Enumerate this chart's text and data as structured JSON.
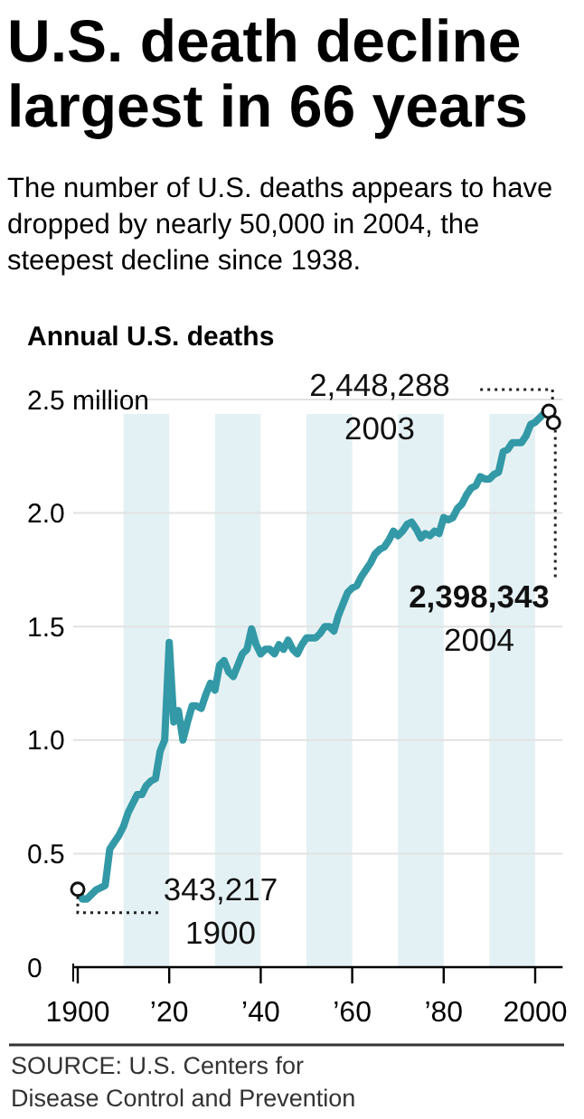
{
  "chart_data": {
    "type": "line",
    "title": "U.S. death decline largest in 66 years",
    "subtitle": "The number of U.S. deaths appears to have dropped by nearly 50,000 in 2004, the steepest decline since 1938.",
    "ylabel": "Annual U.S. deaths",
    "x": [
      1900,
      1901,
      1902,
      1903,
      1904,
      1905,
      1906,
      1907,
      1908,
      1909,
      1910,
      1911,
      1912,
      1913,
      1914,
      1915,
      1916,
      1917,
      1918,
      1919,
      1920,
      1921,
      1922,
      1923,
      1924,
      1925,
      1926,
      1927,
      1928,
      1929,
      1930,
      1931,
      1932,
      1933,
      1934,
      1935,
      1936,
      1937,
      1938,
      1939,
      1940,
      1941,
      1942,
      1943,
      1944,
      1945,
      1946,
      1947,
      1948,
      1949,
      1950,
      1951,
      1952,
      1953,
      1954,
      1955,
      1956,
      1957,
      1958,
      1959,
      1960,
      1961,
      1962,
      1963,
      1964,
      1965,
      1966,
      1967,
      1968,
      1969,
      1970,
      1971,
      1972,
      1973,
      1974,
      1975,
      1976,
      1977,
      1978,
      1979,
      1980,
      1981,
      1982,
      1983,
      1984,
      1985,
      1986,
      1987,
      1988,
      1989,
      1990,
      1991,
      1992,
      1993,
      1994,
      1995,
      1996,
      1997,
      1998,
      1999,
      2000,
      2001,
      2002,
      2003,
      2004
    ],
    "series": [
      {
        "color": "#3399a6",
        "values": [
          0.34,
          0.3,
          0.3,
          0.32,
          0.34,
          0.35,
          0.36,
          0.52,
          0.55,
          0.58,
          0.62,
          0.68,
          0.72,
          0.76,
          0.76,
          0.8,
          0.82,
          0.83,
          0.95,
          1.0,
          1.43,
          1.08,
          1.13,
          1.0,
          1.08,
          1.15,
          1.15,
          1.14,
          1.2,
          1.25,
          1.22,
          1.33,
          1.35,
          1.3,
          1.28,
          1.33,
          1.38,
          1.4,
          1.49,
          1.42,
          1.38,
          1.4,
          1.4,
          1.38,
          1.42,
          1.4,
          1.44,
          1.4,
          1.38,
          1.42,
          1.45,
          1.45,
          1.45,
          1.47,
          1.5,
          1.5,
          1.48,
          1.55,
          1.6,
          1.65,
          1.67,
          1.68,
          1.72,
          1.75,
          1.78,
          1.82,
          1.84,
          1.85,
          1.88,
          1.92,
          1.9,
          1.92,
          1.95,
          1.96,
          1.93,
          1.89,
          1.91,
          1.9,
          1.92,
          1.91,
          1.98,
          1.97,
          1.98,
          2.02,
          2.04,
          2.08,
          2.11,
          2.12,
          2.16,
          2.15,
          2.15,
          2.17,
          2.18,
          2.27,
          2.28,
          2.31,
          2.31,
          2.31,
          2.34,
          2.39,
          2.4,
          2.42,
          2.44,
          2.45,
          2.4
        ]
      }
    ],
    "xlim": [
      1899,
      2006
    ],
    "xticks": [
      1900,
      {
        "value": 1920,
        "label": "’20"
      },
      {
        "value": 1940,
        "label": "’40"
      },
      {
        "value": 1960,
        "label": "’60"
      },
      {
        "value": 1980,
        "label": "’80"
      },
      2000
    ],
    "ylim": [
      0,
      2.5
    ],
    "yticks": [
      0,
      0.5,
      {
        "value": 1,
        "label": "1.0"
      },
      1.5,
      {
        "value": 2,
        "label": "2.0"
      },
      {
        "value": 2.5,
        "label": "2.5 million"
      }
    ],
    "grid": "y",
    "marker": "none",
    "line_style": "solid",
    "bands": [
      {
        "axis": "x",
        "from": 1910,
        "to": 1920,
        "color": "#e4f1f4"
      },
      {
        "axis": "x",
        "from": 1930,
        "to": 1940,
        "color": "#e4f1f4"
      },
      {
        "axis": "x",
        "from": 1950,
        "to": 1960,
        "color": "#e4f1f4"
      },
      {
        "axis": "x",
        "from": 1970,
        "to": 1980,
        "color": "#e4f1f4"
      },
      {
        "axis": "x",
        "from": 1990,
        "to": 2000,
        "color": "#e4f1f4"
      }
    ],
    "annotations": [
      {
        "text": "343,217\n1900",
        "x": 1900,
        "y": 0.343217
      },
      {
        "text": "2,448,288\n2003",
        "x": 2003,
        "y": 2.448288
      },
      {
        "text": "2,398,343\n2004",
        "x": 2004,
        "y": 2.398343
      },
      "SOURCE: U.S. Centers for Disease Control and Prevention"
    ]
  }
}
